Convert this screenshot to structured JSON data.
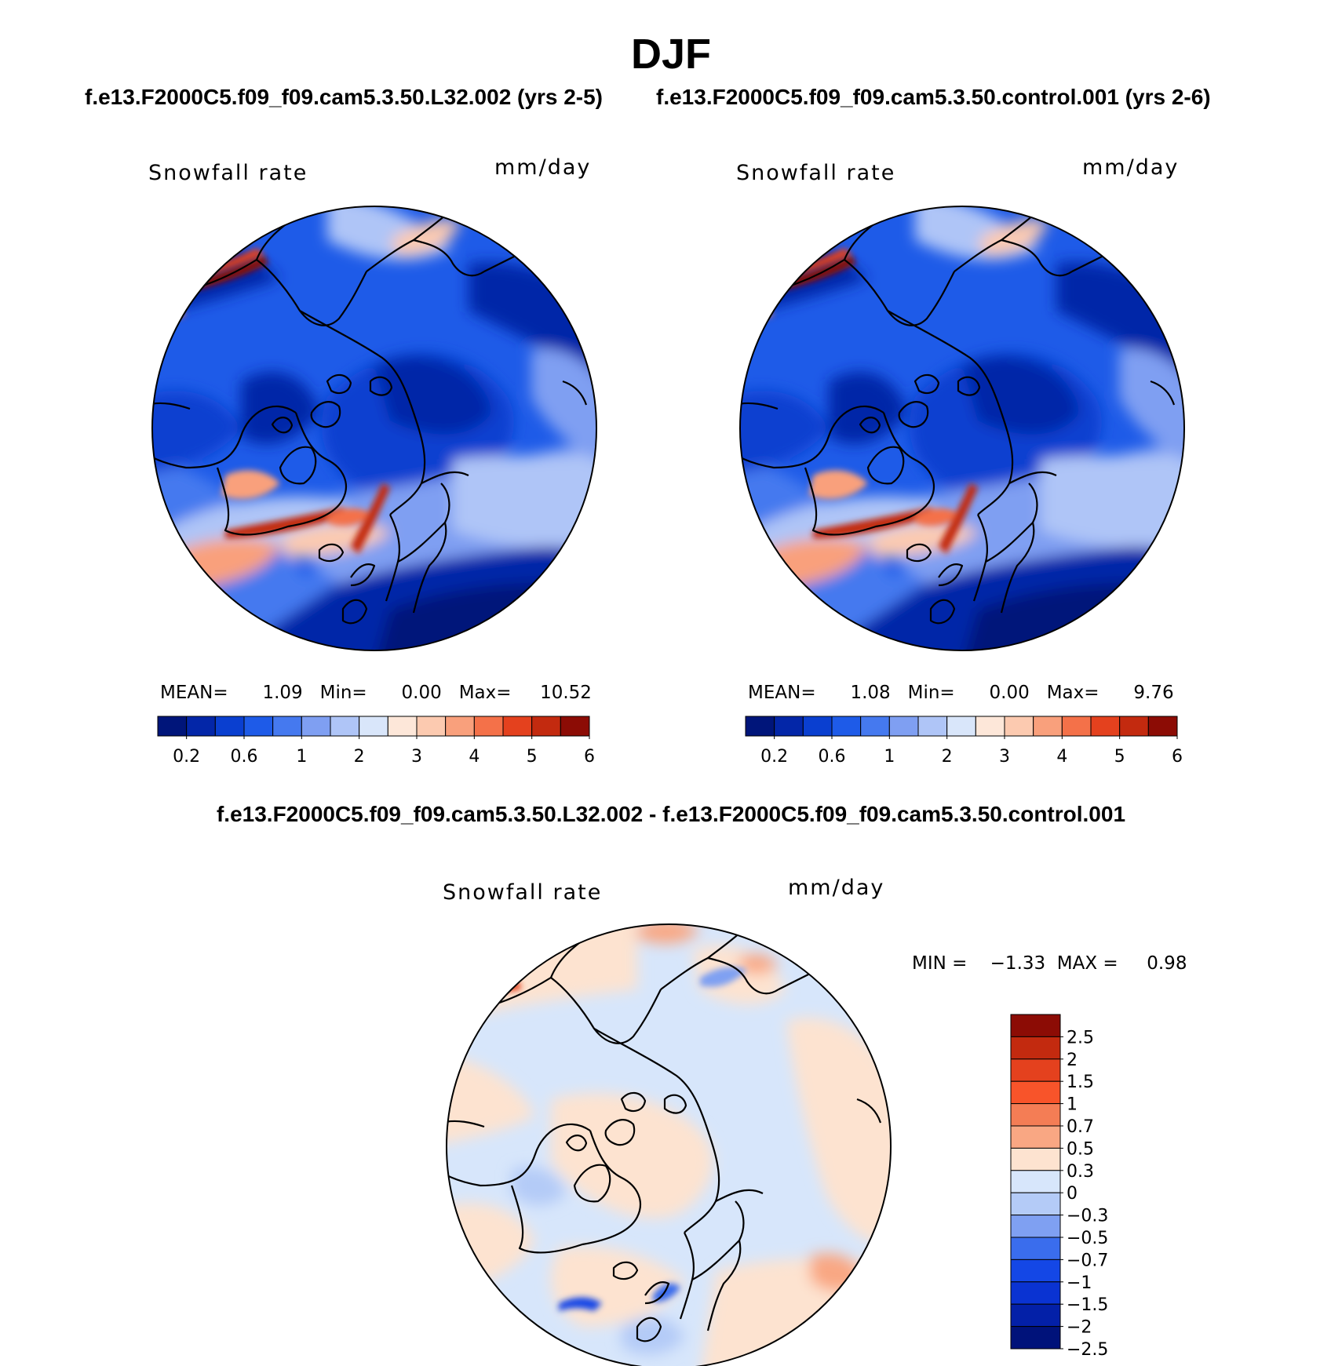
{
  "figure": {
    "title": "DJF",
    "case_a_title": "f.e13.F2000C5.f09_f09.cam5.3.50.L32.002 (yrs 2-5)",
    "case_b_title": "f.e13.F2000C5.f09_f09.cam5.3.50.control.001 (yrs 2-6)",
    "diff_title": "f.e13.F2000C5.f09_f09.cam5.3.50.L32.002 - f.e13.F2000C5.f09_f09.cam5.3.50.control.001"
  },
  "panels": [
    {
      "variable": "Snowfall rate",
      "units": "mm/day",
      "stats": "MEAN=      1.09   Min=      0.00   Max=     10.52"
    },
    {
      "variable": "Snowfall rate",
      "units": "mm/day",
      "stats": "MEAN=      1.08   Min=      0.00   Max=      9.76"
    },
    {
      "variable": "Snowfall rate",
      "units": "mm/day",
      "stats": "MIN =    −1.33  MAX =     0.98"
    }
  ],
  "colorbar_abs": {
    "colors": [
      "#00157a",
      "#0326a8",
      "#0a3fd0",
      "#1e5be8",
      "#4579ef",
      "#7f9ff2",
      "#afc5f7",
      "#d9e6fa",
      "#fde7d9",
      "#fccab0",
      "#f9a07c",
      "#f47149",
      "#e4411e",
      "#c32a0f",
      "#8c0c05"
    ],
    "labels": [
      "0.2",
      "0.6",
      "1",
      "2",
      "3",
      "4",
      "5",
      "6"
    ]
  },
  "colorbar_diff": {
    "colors": [
      "#8c0c05",
      "#c32a0f",
      "#e4411e",
      "#f8542a",
      "#f47d55",
      "#f9a783",
      "#fde3d0",
      "#d7e6fb",
      "#b4cbf7",
      "#7fa0f2",
      "#3a6ded",
      "#1447e6",
      "#0a33d2",
      "#0320a8",
      "#00127a"
    ],
    "labels": [
      "2.5",
      "2",
      "1.5",
      "1",
      "0.7",
      "0.5",
      "0.3",
      "0",
      "−0.3",
      "−0.5",
      "−0.7",
      "−1",
      "−1.5",
      "−2",
      "−2.5"
    ]
  }
}
